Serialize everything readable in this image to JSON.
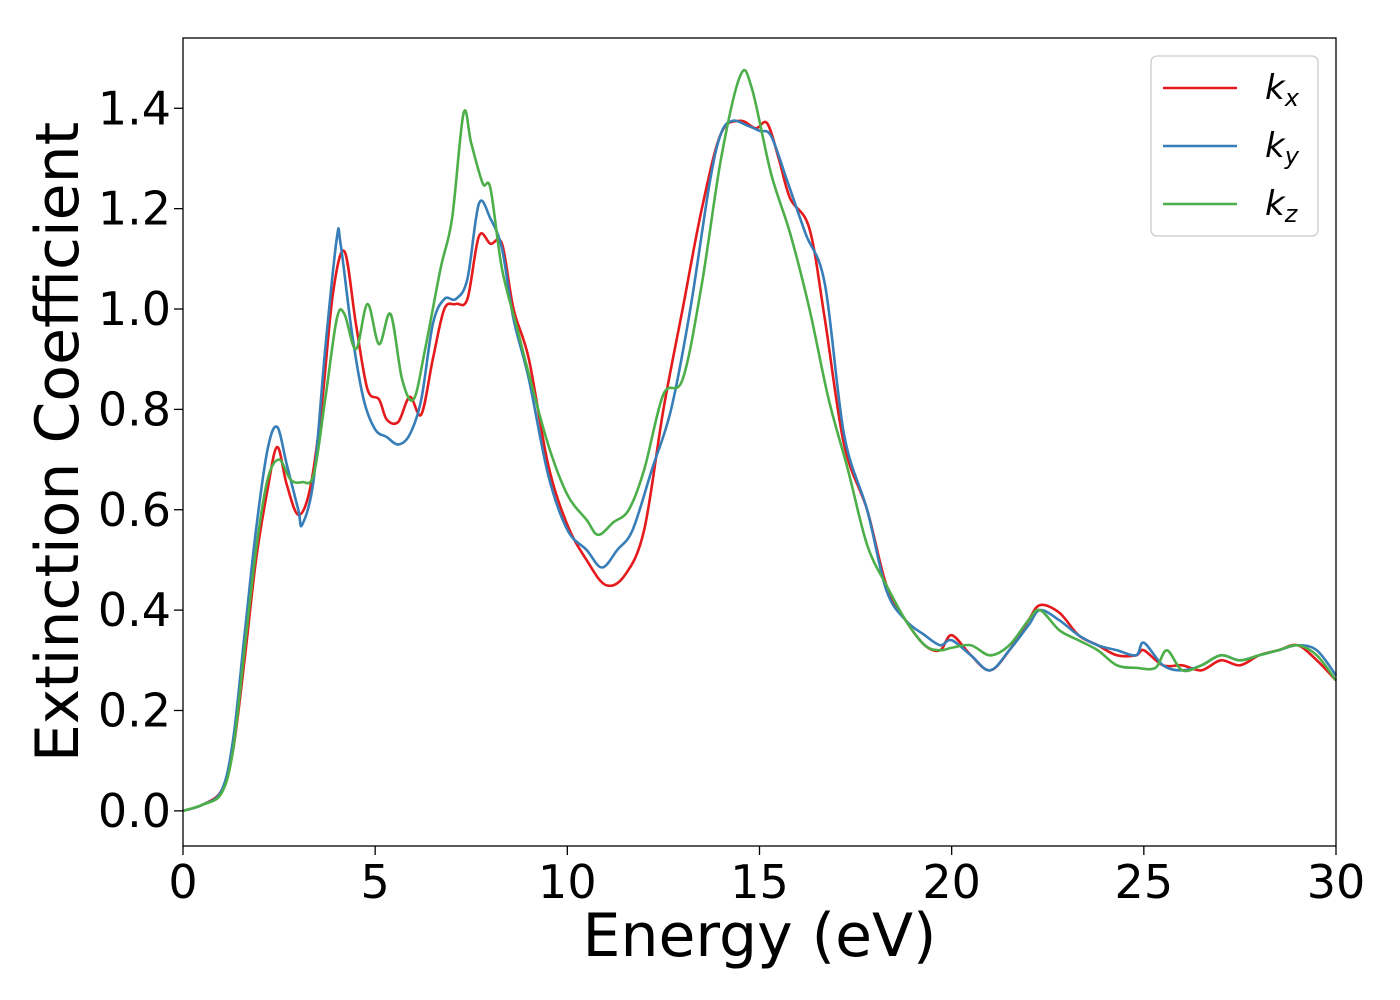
{
  "chart_data": {
    "type": "line",
    "xlabel": "Energy (eV)",
    "ylabel": "Extinction Coefficient",
    "xlim": [
      0,
      30
    ],
    "ylim": [
      -0.07,
      1.54
    ],
    "xticks": [
      0,
      5,
      10,
      15,
      20,
      25,
      30
    ],
    "xtick_labels": [
      "0",
      "5",
      "10",
      "15",
      "20",
      "25",
      "30"
    ],
    "yticks": [
      0.0,
      0.2,
      0.4,
      0.6,
      0.8,
      1.0,
      1.2,
      1.4
    ],
    "ytick_labels": [
      "0.0",
      "0.2",
      "0.4",
      "0.6",
      "0.8",
      "1.0",
      "1.2",
      "1.4"
    ],
    "grid": false,
    "legend_position": "top-right",
    "series": [
      {
        "name": "k_x",
        "legend_base": "k",
        "legend_sub": "x",
        "color": "#e41a1c",
        "x": [
          0,
          0.5,
          1.0,
          1.3,
          1.6,
          1.9,
          2.2,
          2.45,
          2.7,
          3.0,
          3.3,
          3.6,
          3.9,
          4.2,
          4.5,
          4.8,
          5.1,
          5.3,
          5.6,
          5.9,
          6.2,
          6.5,
          6.8,
          7.1,
          7.4,
          7.7,
          8.0,
          8.3,
          8.6,
          9.0,
          9.5,
          10.0,
          10.5,
          11.0,
          11.5,
          12.0,
          12.5,
          13.0,
          13.5,
          14.0,
          14.5,
          14.9,
          15.2,
          15.5,
          15.8,
          16.3,
          16.7,
          17.2,
          17.8,
          18.3,
          18.8,
          19.3,
          19.7,
          20.0,
          20.5,
          21.0,
          21.5,
          22.0,
          22.3,
          22.8,
          23.3,
          23.8,
          24.3,
          24.8,
          25.0,
          25.5,
          26.0,
          26.5,
          27.0,
          27.5,
          28.0,
          28.5,
          29.0,
          29.5,
          30.0
        ],
        "y": [
          0.0,
          0.012,
          0.04,
          0.12,
          0.3,
          0.5,
          0.64,
          0.725,
          0.65,
          0.59,
          0.64,
          0.8,
          1.03,
          1.115,
          0.97,
          0.84,
          0.82,
          0.78,
          0.775,
          0.825,
          0.79,
          0.9,
          1.0,
          1.01,
          1.02,
          1.145,
          1.13,
          1.13,
          1.0,
          0.9,
          0.69,
          0.57,
          0.5,
          0.45,
          0.47,
          0.56,
          0.8,
          1.0,
          1.2,
          1.35,
          1.375,
          1.36,
          1.37,
          1.3,
          1.22,
          1.16,
          0.98,
          0.73,
          0.6,
          0.45,
          0.38,
          0.33,
          0.32,
          0.35,
          0.31,
          0.28,
          0.32,
          0.38,
          0.41,
          0.395,
          0.35,
          0.33,
          0.31,
          0.31,
          0.32,
          0.29,
          0.29,
          0.28,
          0.3,
          0.29,
          0.31,
          0.32,
          0.33,
          0.3,
          0.26
        ]
      },
      {
        "name": "k_y",
        "legend_base": "k",
        "legend_sub": "y",
        "color": "#377eb8",
        "x": [
          0,
          0.5,
          1.0,
          1.3,
          1.6,
          1.9,
          2.2,
          2.45,
          2.7,
          3.0,
          3.1,
          3.4,
          3.7,
          4.0,
          4.1,
          4.4,
          4.7,
          5.0,
          5.3,
          5.6,
          5.9,
          6.2,
          6.5,
          6.8,
          7.1,
          7.4,
          7.7,
          8.0,
          8.3,
          8.6,
          9.0,
          9.5,
          10.0,
          10.5,
          10.9,
          11.3,
          11.7,
          12.2,
          12.7,
          13.2,
          13.7,
          14.0,
          14.3,
          14.7,
          15.0,
          15.3,
          15.7,
          16.2,
          16.7,
          17.2,
          17.8,
          18.3,
          18.8,
          19.3,
          19.7,
          20.0,
          20.5,
          21.0,
          21.5,
          22.0,
          22.3,
          22.8,
          23.3,
          23.8,
          24.3,
          24.8,
          25.0,
          25.5,
          26.0,
          26.5,
          27.0,
          27.5,
          28.0,
          28.5,
          29.0,
          29.5,
          30.0
        ],
        "y": [
          0.0,
          0.012,
          0.04,
          0.14,
          0.35,
          0.56,
          0.72,
          0.765,
          0.69,
          0.6,
          0.57,
          0.66,
          0.92,
          1.14,
          1.13,
          0.95,
          0.82,
          0.76,
          0.745,
          0.73,
          0.75,
          0.82,
          0.97,
          1.02,
          1.02,
          1.06,
          1.21,
          1.18,
          1.12,
          0.98,
          0.86,
          0.67,
          0.56,
          0.52,
          0.485,
          0.52,
          0.56,
          0.68,
          0.8,
          1.0,
          1.25,
          1.35,
          1.375,
          1.365,
          1.355,
          1.345,
          1.26,
          1.15,
          1.05,
          0.75,
          0.6,
          0.44,
          0.38,
          0.35,
          0.33,
          0.34,
          0.31,
          0.28,
          0.32,
          0.37,
          0.4,
          0.38,
          0.35,
          0.33,
          0.32,
          0.31,
          0.335,
          0.29,
          0.28,
          0.29,
          0.31,
          0.3,
          0.31,
          0.32,
          0.33,
          0.32,
          0.27
        ]
      },
      {
        "name": "k_z",
        "legend_base": "k",
        "legend_sub": "z",
        "color": "#4daf4a",
        "x": [
          0,
          0.5,
          1.0,
          1.3,
          1.6,
          1.9,
          2.2,
          2.5,
          2.8,
          3.1,
          3.4,
          3.7,
          4.0,
          4.2,
          4.5,
          4.8,
          5.1,
          5.4,
          5.7,
          6.0,
          6.3,
          6.7,
          7.0,
          7.3,
          7.5,
          7.8,
          8.0,
          8.3,
          8.7,
          9.0,
          9.5,
          10.0,
          10.5,
          10.8,
          11.2,
          11.6,
          12.0,
          12.5,
          13.0,
          13.5,
          14.0,
          14.5,
          14.8,
          15.3,
          15.8,
          16.3,
          16.8,
          17.3,
          17.8,
          18.3,
          18.8,
          19.3,
          19.7,
          20.0,
          20.5,
          21.0,
          21.5,
          22.0,
          22.3,
          22.8,
          23.3,
          23.8,
          24.3,
          24.8,
          25.3,
          25.6,
          26.0,
          26.5,
          27.0,
          27.5,
          28.0,
          28.5,
          29.0,
          29.5,
          30.0
        ],
        "y": [
          0.0,
          0.012,
          0.035,
          0.12,
          0.32,
          0.52,
          0.66,
          0.7,
          0.66,
          0.655,
          0.67,
          0.82,
          0.98,
          0.99,
          0.92,
          1.01,
          0.93,
          0.99,
          0.86,
          0.82,
          0.92,
          1.08,
          1.18,
          1.39,
          1.33,
          1.25,
          1.24,
          1.08,
          0.96,
          0.87,
          0.73,
          0.63,
          0.58,
          0.55,
          0.575,
          0.6,
          0.68,
          0.83,
          0.86,
          1.05,
          1.3,
          1.465,
          1.44,
          1.27,
          1.15,
          1.0,
          0.82,
          0.68,
          0.53,
          0.45,
          0.38,
          0.33,
          0.32,
          0.325,
          0.33,
          0.31,
          0.33,
          0.38,
          0.4,
          0.36,
          0.34,
          0.32,
          0.29,
          0.285,
          0.285,
          0.32,
          0.28,
          0.29,
          0.31,
          0.3,
          0.31,
          0.32,
          0.33,
          0.31,
          0.26
        ]
      }
    ]
  }
}
